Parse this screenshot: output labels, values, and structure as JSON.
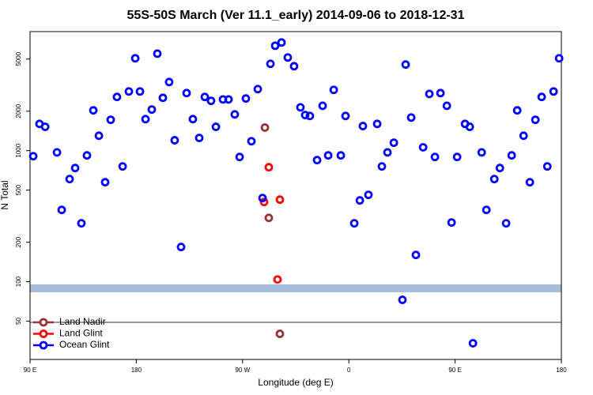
{
  "chart_data": {
    "type": "scatter",
    "title": "55S-50S March (Ver 11.1_early)   2014-09-06 to 2018-12-31",
    "x_label": "Longitude (deg E)",
    "y_label": "N Total",
    "log_y": true,
    "legend": "bottom-left",
    "xlim": [
      90,
      540
    ],
    "xticks": [
      {
        "value": 90,
        "label": "90 E"
      },
      {
        "value": 180,
        "label": "180"
      },
      {
        "value": 270,
        "label": "90 W"
      },
      {
        "value": 360,
        "label": "0"
      },
      {
        "value": 450,
        "label": "90 E"
      },
      {
        "value": 540,
        "label": "180"
      }
    ],
    "ylim": [
      25.5,
      8100
    ],
    "yticks": [
      50,
      100,
      200,
      500,
      1000,
      2000,
      5000
    ],
    "series": [
      {
        "name": "Land Nadir",
        "color": "#993333",
        "x": [
          288.9,
          292.2,
          301.6
        ],
        "values": [
          1500,
          307,
          40
        ]
      },
      {
        "name": "Land Glint",
        "color": "#ff0000",
        "x": [
          292.2,
          288.2,
          301.6,
          299.6
        ],
        "values": [
          747,
          406,
          423,
          104
        ]
      },
      {
        "name": "Ocean Glint",
        "color": "#0000ff",
        "x": [
          92.7,
          98,
          102.8,
          112.8,
          116.8,
          123.5,
          128.2,
          133.5,
          138.2,
          143.6,
          148.3,
          153.6,
          158.3,
          163.6,
          168.4,
          173.7,
          179.1,
          183.1,
          187.8,
          193.1,
          197.8,
          202.5,
          207.8,
          212.5,
          217.9,
          222.6,
          227.9,
          233.3,
          238,
          243.3,
          247.4,
          253.4,
          258.1,
          263.4,
          267.5,
          272.8,
          277.5,
          282.9,
          286.9,
          293.6,
          297.6,
          303,
          308.3,
          313.6,
          319,
          323,
          327,
          333.1,
          337.8,
          342.5,
          347.2,
          353.2,
          357.2,
          364.6,
          369.3,
          371.9,
          376.6,
          384,
          388,
          392.7,
          398.1,
          405.4,
          408.1,
          412.8,
          416.8,
          422.9,
          428.2,
          432.9,
          437.6,
          443,
          447,
          451.7,
          458.4,
          462.4,
          465.1,
          472.5,
          476.5,
          483.2,
          487.9,
          493.2,
          497.9,
          502.6,
          508,
          513.3,
          518,
          523.3,
          528.1,
          533.4,
          538.1
        ],
        "values": [
          907,
          1600,
          1520,
          970,
          353,
          607,
          737,
          279,
          920,
          2030,
          1300,
          574,
          1720,
          2570,
          758,
          2830,
          5070,
          2830,
          1740,
          2060,
          5500,
          2530,
          3340,
          1200,
          184,
          2750,
          1740,
          1250,
          2570,
          2400,
          1520,
          2460,
          2460,
          1890,
          895,
          2500,
          1180,
          2950,
          435,
          4600,
          6320,
          6690,
          5140,
          4410,
          2140,
          1870,
          1840,
          847,
          2200,
          920,
          2910,
          920,
          1840,
          279,
          417,
          1540,
          460,
          1600,
          758,
          970,
          1150,
          72.7,
          4540,
          1790,
          160,
          1060,
          2710,
          895,
          2750,
          2200,
          283,
          895,
          1600,
          1520,
          33.9,
          970,
          353,
          607,
          737,
          279,
          920,
          2030,
          1300,
          574,
          1720,
          2570,
          758,
          2830,
          5070
        ]
      }
    ]
  }
}
